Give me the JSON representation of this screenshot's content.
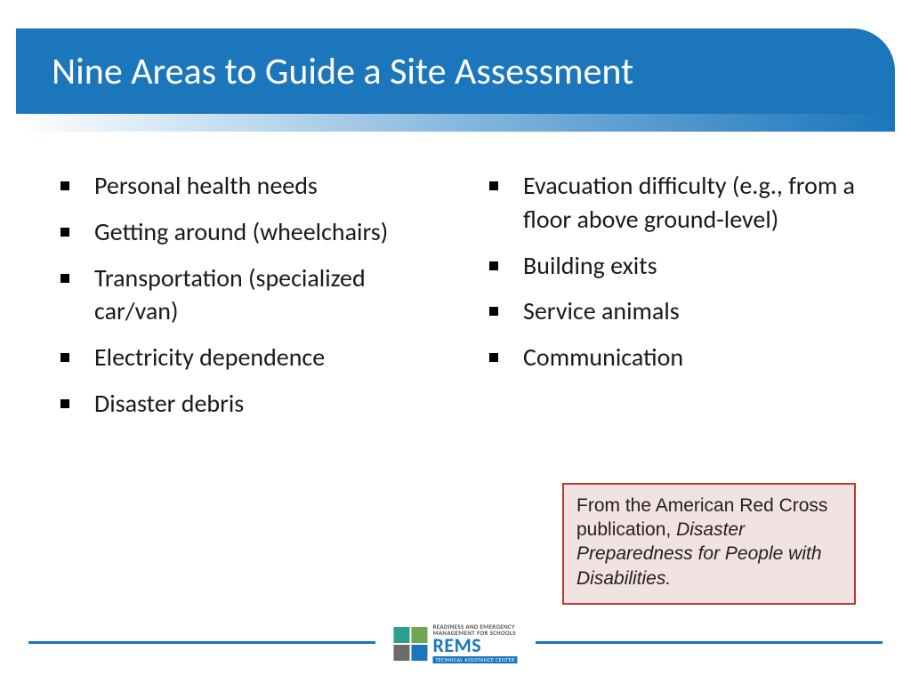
{
  "title": "Nine Areas to Guide a Site Assessment",
  "colors": {
    "header_bg": "#1b76bc",
    "header_text": "#ffffff",
    "bullet_color": "#000000",
    "body_text": "#1a1a1a",
    "citation_border": "#c0392b",
    "citation_bg": "#f3e2e3",
    "footer_rule": "#1b76bc"
  },
  "typography": {
    "title_fontsize": 42,
    "title_weight": 400,
    "body_fontsize": 28,
    "citation_fontsize": 21
  },
  "left_items": [
    "Personal health needs",
    "Getting around (wheelchairs)",
    "Transportation (specialized car/van)",
    "Electricity dependence",
    "Disaster debris"
  ],
  "right_items": [
    "Evacuation difficulty (e.g., from a floor above ground-level)",
    "Building exits",
    "Service animals",
    "Communication"
  ],
  "citation": {
    "prefix": "From the American Red Cross publication, ",
    "title_italic": "Disaster Preparedness for People with Disabilities."
  },
  "logo": {
    "line1": "READINESS AND EMERGENCY",
    "line2": "MANAGEMENT FOR SCHOOLS",
    "acronym": "REMS",
    "subline": "TECHNICAL ASSISTANCE CENTER",
    "square_colors": [
      "#2e9e8f",
      "#6fa84f",
      "#6b6b6b",
      "#1b76bc"
    ]
  }
}
